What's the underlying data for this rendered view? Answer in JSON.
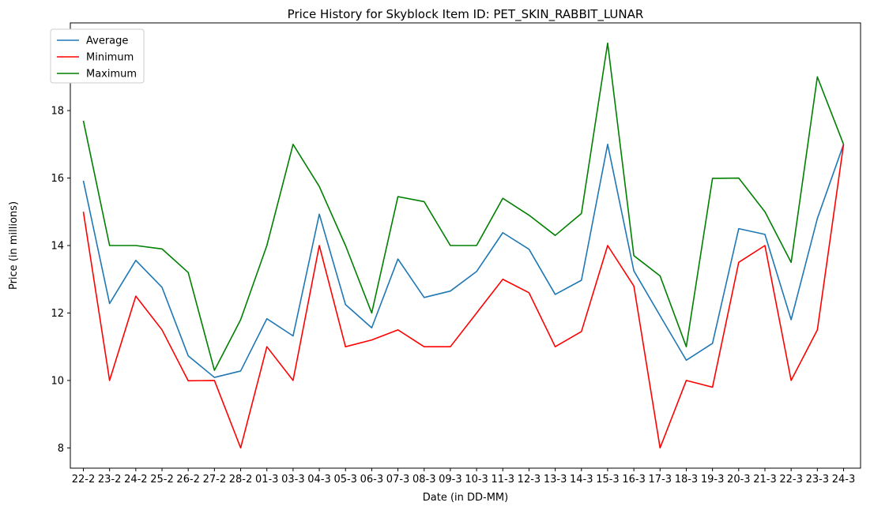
{
  "chart_data": {
    "type": "line",
    "title": "Price History for Skyblock Item ID: PET_SKIN_RABBIT_LUNAR",
    "xlabel": "Date (in DD-MM)",
    "ylabel": "Price (in millions)",
    "categories": [
      "22-2",
      "23-2",
      "24-2",
      "25-2",
      "26-2",
      "27-2",
      "28-2",
      "01-3",
      "03-3",
      "04-3",
      "05-3",
      "06-3",
      "07-3",
      "08-3",
      "09-3",
      "10-3",
      "11-3",
      "12-3",
      "13-3",
      "14-3",
      "15-3",
      "16-3",
      "17-3",
      "18-3",
      "19-3",
      "20-3",
      "21-3",
      "22-3",
      "23-3",
      "24-3"
    ],
    "ylim": [
      7.4,
      20.6
    ],
    "yticks": [
      8,
      10,
      12,
      14,
      16,
      18,
      20
    ],
    "grid": false,
    "legend": "top-left",
    "series": [
      {
        "name": "Average",
        "color": "#1f77b4",
        "values": [
          15.92,
          12.28,
          13.56,
          12.76,
          10.73,
          10.09,
          10.28,
          11.83,
          11.32,
          14.93,
          12.25,
          11.56,
          13.6,
          12.46,
          12.65,
          13.23,
          14.38,
          13.89,
          12.55,
          12.97,
          17.0,
          13.25,
          11.92,
          10.6,
          11.1,
          14.5,
          14.33,
          11.8,
          14.8,
          17.0
        ]
      },
      {
        "name": "Minimum",
        "color": "#ff0000",
        "values": [
          15.0,
          10.0,
          12.5,
          11.5,
          9.99,
          10.0,
          8.0,
          11.0,
          10.0,
          14.0,
          11.0,
          11.2,
          11.5,
          11.0,
          11.0,
          12.0,
          13.0,
          12.6,
          11.0,
          11.45,
          14.0,
          12.8,
          8.0,
          10.0,
          9.8,
          13.5,
          14.0,
          10.0,
          11.5,
          17.0
        ]
      },
      {
        "name": "Maximum",
        "color": "#008000",
        "values": [
          17.7,
          14.0,
          14.0,
          13.9,
          13.2,
          10.3,
          11.8,
          14.0,
          17.0,
          15.75,
          14.0,
          12.0,
          15.45,
          15.3,
          14.0,
          14.0,
          15.4,
          14.9,
          14.3,
          14.95,
          20.0,
          13.7,
          13.1,
          11.0,
          15.99,
          16.0,
          15.0,
          13.5,
          19.0,
          17.0
        ]
      }
    ]
  }
}
